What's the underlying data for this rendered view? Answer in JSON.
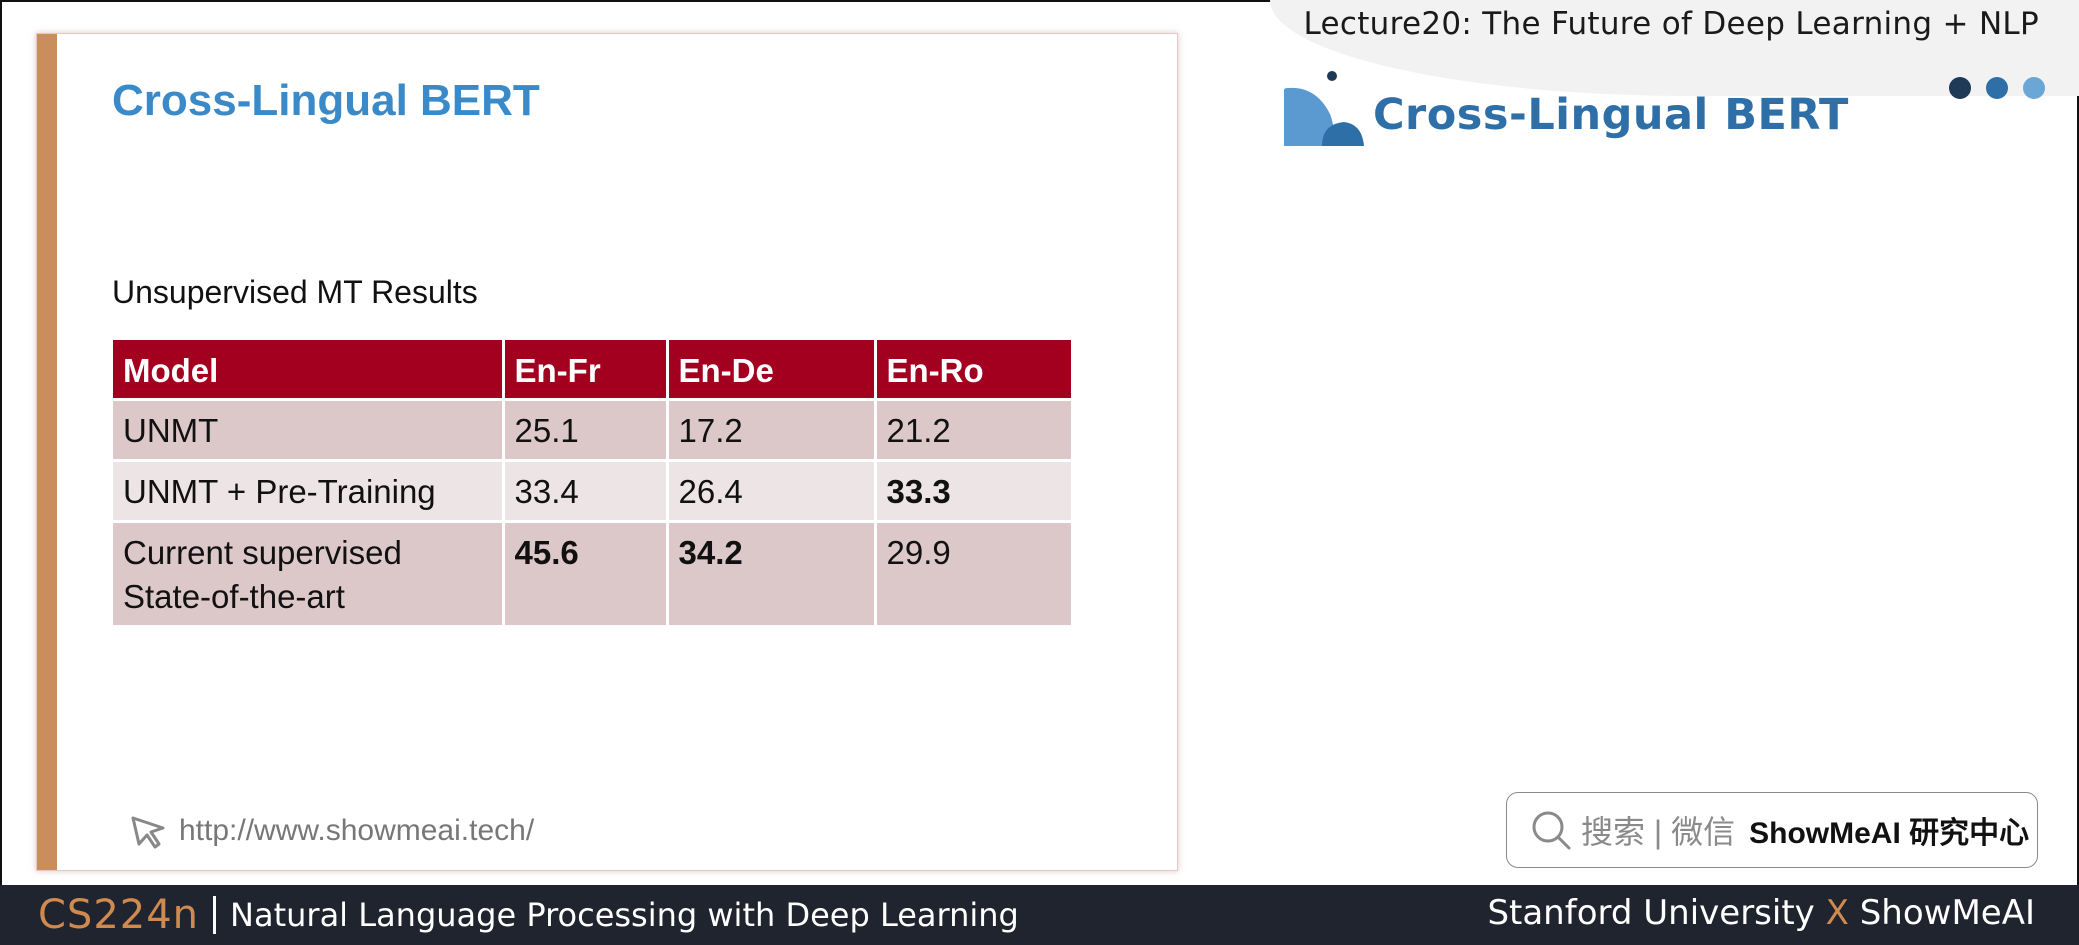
{
  "header": {
    "lecture_title": "Lecture20: The Future of Deep Learning + NLP",
    "section_heading": "Cross-Lingual BERT",
    "dot_colors": [
      "#1f3a56",
      "#2f6fa8",
      "#6aa6d6"
    ]
  },
  "slide": {
    "title": "Cross-Lingual BERT",
    "subtitle": "Unsupervised MT Results",
    "table": {
      "headers": [
        "Model",
        "En-Fr",
        "En-De",
        "En-Ro"
      ],
      "rows": [
        [
          "UNMT",
          "25.1",
          "17.2",
          "21.2"
        ],
        [
          "UNMT + Pre-Training",
          "33.4",
          "26.4",
          "33.3"
        ],
        [
          "Current supervised State-of-the-art",
          "45.6",
          "34.2",
          "29.9"
        ]
      ],
      "model_line2": "State-of-the-art",
      "model_line1": "Current supervised"
    },
    "url": "http://www.showmeai.tech/",
    "url_icon": "cursor-arrow-icon"
  },
  "search_badge": {
    "icon": "search-icon",
    "text": "搜索 | 微信",
    "brand": "ShowMeAI 研究中心"
  },
  "footer": {
    "course": "CS224n",
    "description": "Natural Language Processing with Deep Learning",
    "left_org": "Stanford University",
    "x_mark": "X",
    "right_org": "ShowMeAI"
  },
  "colors": {
    "accent_bar": "#c98e5b",
    "table_header": "#a3001f",
    "title_blue": "#3a8ac9",
    "footer_bg": "#20242e"
  }
}
